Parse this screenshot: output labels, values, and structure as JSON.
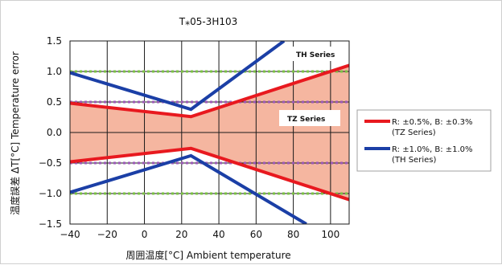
{
  "chart_data": {
    "type": "line",
    "title": "T⁎05-3H103",
    "xlabel": "周囲温度[°C]  Ambient temperature",
    "ylabel": "温度誤差  ΔT[°C]  Temperature error",
    "xlim": [
      -40,
      110
    ],
    "ylim": [
      -1.5,
      1.5
    ],
    "x_ticks": [
      "−40",
      "−20",
      "0",
      "20",
      "40",
      "60",
      "80",
      "100"
    ],
    "y_ticks": [
      "1.5",
      "1.0",
      "0.5",
      "0.0",
      "−0.5",
      "−1.0",
      "−1.5"
    ],
    "grid": true,
    "colors": {
      "tz": "#e8191f",
      "th": "#1b3fa6",
      "band": "#f5b6a0",
      "green_ref": "#7ac143",
      "purple_ref": "#9b59b6"
    },
    "reference_lines": {
      "green": [
        1.0,
        -1.0
      ],
      "purple": [
        0.5,
        -0.5
      ]
    },
    "series": [
      {
        "key": "tz_upper",
        "color_key": "tz",
        "x": [
          -40,
          25,
          110
        ],
        "y": [
          0.48,
          0.26,
          1.1
        ]
      },
      {
        "key": "tz_lower",
        "color_key": "tz",
        "x": [
          -40,
          25,
          110
        ],
        "y": [
          -0.48,
          -0.26,
          -1.1
        ]
      },
      {
        "key": "th_upper",
        "color_key": "th",
        "x": [
          -40,
          25,
          75
        ],
        "y": [
          0.98,
          0.38,
          1.5
        ]
      },
      {
        "key": "th_lower",
        "color_key": "th",
        "x": [
          -40,
          25,
          87
        ],
        "y": [
          -0.98,
          -0.38,
          -1.5
        ]
      }
    ],
    "annotations": {
      "th_series": "TH Series",
      "tz_series": "TZ Series"
    },
    "legend": {
      "placement": "right",
      "entries": [
        {
          "color_key": "tz",
          "line1": "R: ±0.5%, B: ±0.3%",
          "line2": "(TZ Series)"
        },
        {
          "color_key": "th",
          "line1": "R: ±1.0%, B: ±1.0%",
          "line2": "(TH Series)"
        }
      ]
    }
  }
}
